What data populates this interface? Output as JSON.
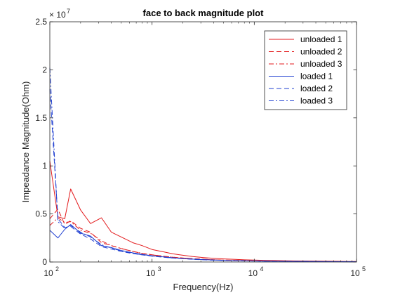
{
  "chart_data": {
    "type": "line",
    "title": "face to back magnitude plot",
    "xlabel": "Frequency(Hz)",
    "ylabel": "Impeadance Magnitude(Ohm)",
    "xscale": "log",
    "xlim": [
      100,
      100000
    ],
    "ylim": [
      0,
      25000000
    ],
    "y_multiplier_label": "× 10",
    "y_multiplier_exponent": "7",
    "x_ticks": [
      100,
      1000,
      10000,
      100000
    ],
    "x_tick_base": "10",
    "x_tick_exponents": [
      "2",
      "3",
      "4",
      "5"
    ],
    "y_ticks": [
      0,
      5000000,
      10000000,
      15000000,
      20000000,
      25000000
    ],
    "y_tick_labels": [
      "0",
      "0.5",
      "1",
      "1.5",
      "2",
      "2.5"
    ],
    "grid": false,
    "legend_position": "top-right",
    "series": [
      {
        "name": "unloaded 1",
        "color": "#e31a1c",
        "dash": "solid",
        "x": [
          100,
          120,
          140,
          160,
          200,
          250,
          320,
          400,
          500,
          650,
          800,
          1000,
          1300,
          1600,
          2000,
          2500,
          3200,
          4000,
          5000,
          6500,
          8000,
          10000,
          13000,
          16000,
          20000,
          25000,
          32000,
          40000,
          50000,
          65000,
          80000,
          100000
        ],
        "values": [
          10500000,
          4700000,
          4500000,
          7600000,
          5400000,
          4000000,
          4600000,
          3100000,
          2600000,
          2000000,
          1700000,
          1300000,
          1050000,
          850000,
          700000,
          560000,
          460000,
          380000,
          320000,
          270000,
          230000,
          200000,
          170000,
          150000,
          130000,
          110000,
          100000,
          90000,
          80000,
          70000,
          60000,
          50000
        ]
      },
      {
        "name": "unloaded 2",
        "color": "#e31a1c",
        "dash": "dash",
        "x": [
          100,
          120,
          140,
          160,
          200,
          250,
          320,
          400,
          500,
          650,
          800,
          1000,
          1300,
          1600,
          2000,
          2500,
          3200,
          4000,
          5000,
          6500,
          8000,
          10000,
          13000,
          16000,
          20000,
          25000,
          32000,
          40000,
          50000,
          65000,
          80000,
          100000
        ],
        "values": [
          4500000,
          5500000,
          3900000,
          4300000,
          3500000,
          3100000,
          2000000,
          1700000,
          1400000,
          1100000,
          900000,
          750000,
          600000,
          500000,
          420000,
          350000,
          290000,
          240000,
          200000,
          170000,
          145000,
          125000,
          105000,
          90000,
          80000,
          70000,
          60000,
          52000,
          46000,
          40000,
          35000,
          30000
        ]
      },
      {
        "name": "unloaded 3",
        "color": "#e31a1c",
        "dash": "dashdot",
        "x": [
          100,
          120,
          140,
          160,
          200,
          250,
          320,
          400,
          500,
          650,
          800,
          1000,
          1300,
          1600,
          2000,
          2500,
          3200,
          4000,
          5000,
          6500,
          8000,
          10000,
          13000,
          16000,
          20000,
          25000,
          32000,
          40000,
          50000,
          65000,
          80000,
          100000
        ],
        "values": [
          3800000,
          4600000,
          4100000,
          4200000,
          3300000,
          3000000,
          2200000,
          1700000,
          1400000,
          1100000,
          900000,
          740000,
          600000,
          500000,
          410000,
          340000,
          280000,
          230000,
          195000,
          165000,
          140000,
          120000,
          102000,
          88000,
          76000,
          66000,
          57000,
          50000,
          44000,
          38000,
          33000,
          28000
        ]
      },
      {
        "name": "loaded 1",
        "color": "#1f3fd1",
        "dash": "solid",
        "x": [
          100,
          120,
          140,
          160,
          200,
          250,
          320,
          400,
          500,
          650,
          800,
          1000,
          1300,
          1600,
          2000,
          2500,
          3200,
          4000,
          5000,
          6500,
          8000,
          10000,
          13000,
          16000,
          20000,
          25000,
          32000,
          40000,
          50000,
          65000,
          80000,
          100000
        ],
        "values": [
          3300000,
          2500000,
          3400000,
          3900000,
          3000000,
          2700000,
          1700000,
          1500000,
          1200000,
          950000,
          800000,
          650000,
          530000,
          440000,
          360000,
          300000,
          250000,
          205000,
          170000,
          145000,
          125000,
          108000,
          92000,
          80000,
          70000,
          61000,
          53000,
          46000,
          41000,
          35000,
          31000,
          27000
        ]
      },
      {
        "name": "loaded 2",
        "color": "#1f3fd1",
        "dash": "dash",
        "x": [
          100,
          120,
          140,
          160,
          200,
          250,
          320,
          400,
          500,
          650,
          800,
          1000,
          1300,
          1600,
          2000,
          2500,
          3200,
          4000,
          5000,
          6500,
          8000,
          10000,
          13000,
          16000,
          20000,
          25000,
          32000,
          40000,
          50000,
          65000,
          80000,
          100000
        ],
        "values": [
          18000000,
          4500000,
          3600000,
          3700000,
          2900000,
          2400000,
          1600000,
          1350000,
          1100000,
          880000,
          740000,
          610000,
          500000,
          410000,
          340000,
          280000,
          230000,
          190000,
          160000,
          135000,
          115000,
          100000,
          86000,
          74000,
          64000,
          56000,
          49000,
          43000,
          38000,
          33000,
          29000,
          25000
        ]
      },
      {
        "name": "loaded 3",
        "color": "#1f3fd1",
        "dash": "dashdot",
        "x": [
          100,
          120,
          140,
          160,
          200,
          250,
          320,
          400,
          500,
          650,
          800,
          1000,
          1300,
          1600,
          2000,
          2500,
          3200,
          4000,
          5000,
          6500,
          8000,
          10000,
          13000,
          16000,
          20000,
          25000,
          32000,
          40000,
          50000,
          65000,
          80000,
          100000
        ],
        "values": [
          20200000,
          4200000,
          3500000,
          3800000,
          3100000,
          2600000,
          1800000,
          1450000,
          1150000,
          900000,
          760000,
          630000,
          510000,
          420000,
          350000,
          290000,
          240000,
          198000,
          165000,
          140000,
          120000,
          103000,
          88000,
          76000,
          66000,
          58000,
          50000,
          44000,
          39000,
          34000,
          30000,
          26000
        ]
      }
    ]
  }
}
